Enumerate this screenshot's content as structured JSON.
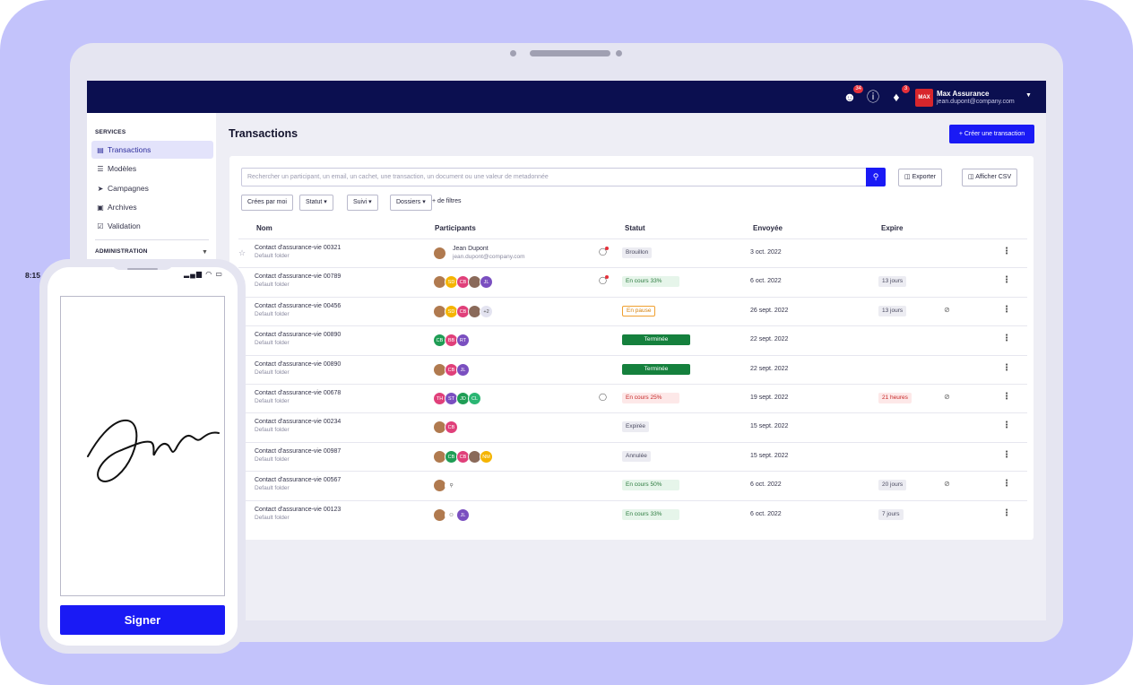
{
  "topbar": {
    "users_badge": "34",
    "notif_badge": "3",
    "logo_text": "MAX",
    "account_name": "Max Assurance",
    "account_email": "jean.dupont@company.com"
  },
  "sidebar": {
    "services_title": "SERVICES",
    "items": [
      {
        "label": "Transactions",
        "icon": "document-icon"
      },
      {
        "label": "Modèles",
        "icon": "layers-icon"
      },
      {
        "label": "Campagnes",
        "icon": "send-icon"
      },
      {
        "label": "Archives",
        "icon": "archive-icon"
      },
      {
        "label": "Validation",
        "icon": "check-document-icon"
      }
    ],
    "admin_title": "ADMINISTRATION"
  },
  "main": {
    "title": "Transactions",
    "create_button": "Créer une transaction",
    "search_placeholder": "Rechercher un participant, un email, un cachet, une transaction, un document ou une valeur de metadonnée",
    "export_button": "Exporter",
    "csv_button": "Afficher CSV",
    "filters": [
      "Crées par moi",
      "Statut",
      "Suivi",
      "Dossiers"
    ],
    "more_filters": "de filtres",
    "columns": [
      "Nom",
      "Participants",
      "Statut",
      "Envoyée",
      "Expire"
    ]
  },
  "rows": [
    {
      "name": "Contact d'assurance-vie 00321",
      "folder": "Default folder",
      "participant_name": "Jean Dupont",
      "participant_email": "jean.dupont@company.com",
      "avatars": [
        {
          "t": "",
          "c": "#b07a4f"
        }
      ],
      "message": true,
      "message_alert": true,
      "status": "Brouillon",
      "status_type": "draft",
      "sent": "3 oct. 2022",
      "expire": "",
      "eye": false
    },
    {
      "name": "Contact d'assurance-vie 00789",
      "folder": "Default folder",
      "avatars": [
        {
          "t": "",
          "c": "#b07a4f"
        },
        {
          "t": "SD",
          "c": "#f5b400"
        },
        {
          "t": "CB",
          "c": "#e0407a"
        },
        {
          "t": "",
          "c": "#8a6a5a"
        },
        {
          "t": "JL",
          "c": "#7a4fc0"
        }
      ],
      "message": true,
      "message_alert": true,
      "status": "En cours 33%",
      "status_type": "progress",
      "sent": "6 oct. 2022",
      "expire": "13 jours",
      "eye": false
    },
    {
      "name": "Contact d'assurance-vie 00456",
      "folder": "Default folder",
      "avatars": [
        {
          "t": "",
          "c": "#b07a4f"
        },
        {
          "t": "SD",
          "c": "#f5b400"
        },
        {
          "t": "CB",
          "c": "#e0407a"
        },
        {
          "t": "",
          "c": "#8a6a5a"
        },
        {
          "t": "+2",
          "c": "#e3e3f0"
        }
      ],
      "message": false,
      "status": "En pause",
      "status_type": "pause",
      "sent": "26 sept. 2022",
      "expire": "13 jours",
      "eye": true
    },
    {
      "name": "Contact d'assurance-vie 00890",
      "folder": "Default folder",
      "avatars": [
        {
          "t": "CB",
          "c": "#1f9d55"
        },
        {
          "t": "BB",
          "c": "#e0407a"
        },
        {
          "t": "RT",
          "c": "#7a4fc0"
        }
      ],
      "message": false,
      "status": "Terminée",
      "status_type": "done",
      "sent": "22 sept. 2022",
      "expire": "",
      "eye": false
    },
    {
      "name": "Contact d'assurance-vie 00890",
      "folder": "Default folder",
      "avatars": [
        {
          "t": "",
          "c": "#b07a4f"
        },
        {
          "t": "CB",
          "c": "#e0407a"
        },
        {
          "t": "JL",
          "c": "#7a4fc0"
        }
      ],
      "message": false,
      "status": "Terminée",
      "status_type": "done",
      "sent": "22 sept. 2022",
      "expire": "",
      "eye": false
    },
    {
      "name": "Contact d'assurance-vie 00678",
      "folder": "Default folder",
      "avatars": [
        {
          "t": "TH",
          "c": "#e0407a"
        },
        {
          "t": "ST",
          "c": "#7a4fc0"
        },
        {
          "t": "JD",
          "c": "#1f9d55"
        },
        {
          "t": "CL",
          "c": "#2bb673"
        }
      ],
      "message": true,
      "message_alert": false,
      "status": "En cours 25%",
      "status_type": "red",
      "sent": "19 sept. 2022",
      "expire": "21 heures",
      "expire_red": true,
      "eye": true
    },
    {
      "name": "Contact d'assurance-vie 00234",
      "folder": "Default folder",
      "avatars": [
        {
          "t": "",
          "c": "#b07a4f"
        },
        {
          "t": "CB",
          "c": "#e0407a"
        }
      ],
      "message": false,
      "status": "Expirée",
      "status_type": "expired",
      "sent": "15 sept. 2022",
      "expire": "",
      "eye": false
    },
    {
      "name": "Contact d'assurance-vie 00987",
      "folder": "Default folder",
      "avatars": [
        {
          "t": "",
          "c": "#b07a4f"
        },
        {
          "t": "CB",
          "c": "#1f9d55"
        },
        {
          "t": "CB",
          "c": "#e0407a"
        },
        {
          "t": "",
          "c": "#8a6a5a"
        },
        {
          "t": "NM",
          "c": "#f5b400"
        }
      ],
      "message": false,
      "status": "Annulée",
      "status_type": "expired",
      "sent": "15 sept. 2022",
      "expire": "",
      "eye": false
    },
    {
      "name": "Contact d'assurance-vie 00567",
      "folder": "Default folder",
      "avatars": [
        {
          "t": "",
          "c": "#b07a4f"
        },
        {
          "t": "⚲",
          "c": "#ffffff"
        }
      ],
      "message": false,
      "status": "En cours 50%",
      "status_type": "progress",
      "sent": "6 oct. 2022",
      "expire": "20 jours",
      "eye": true
    },
    {
      "name": "Contact d'assurance-vie 00123",
      "folder": "Default folder",
      "avatars": [
        {
          "t": "",
          "c": "#b07a4f"
        },
        {
          "t": "⚇",
          "c": "#ffffff"
        },
        {
          "t": "JL",
          "c": "#7a4fc0"
        }
      ],
      "message": false,
      "status": "En cours 33%",
      "status_type": "progress",
      "sent": "6 oct. 2022",
      "expire": "7 jours",
      "eye": false
    }
  ],
  "phone": {
    "time": "8:15",
    "status_icons": "▂▄▆ ◠ ▭",
    "sign_button": "Signer"
  }
}
